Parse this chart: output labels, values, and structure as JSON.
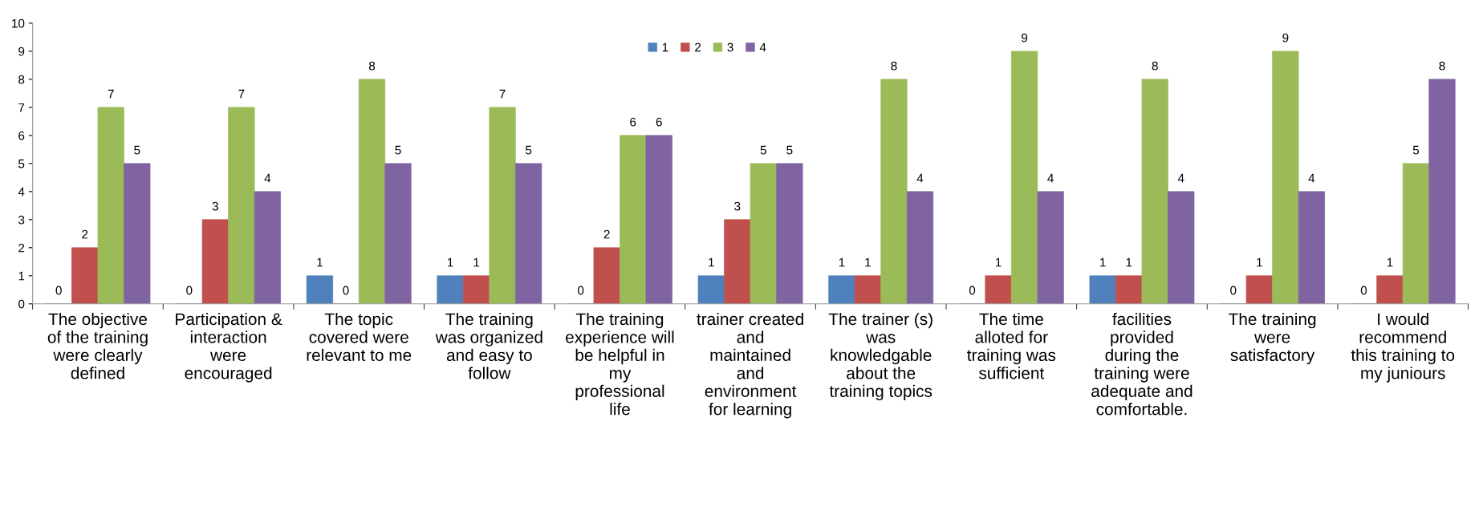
{
  "chart_data": {
    "type": "bar",
    "categories": [
      "The objective\nof the training\nwere clearly\ndefined",
      "Participation &\ninteraction\nwere\nencouraged",
      "The topic\ncovered were\nrelevant to me",
      "The training\nwas organized\nand easy to\nfollow",
      "The training\nexperience will\nbe helpful in\nmy\nprofessional\nlife",
      "trainer created\nand\nmaintained\nand\nenvironment\nfor learning",
      "The trainer (s)\nwas\nknowledgable\nabout the\ntraining topics",
      "The time\nalloted for\ntraining was\nsufficient",
      "facilities\nprovided\nduring the\ntraining were\nadequate and\ncomfortable.",
      "The training\nwere\nsatisfactory",
      "I would\nrecommend\nthis training to\nmy juniours"
    ],
    "series": [
      {
        "name": "1",
        "color": "#4f81bd",
        "values": [
          0,
          0,
          1,
          1,
          0,
          1,
          1,
          0,
          1,
          0,
          0
        ]
      },
      {
        "name": "2",
        "color": "#c0504d",
        "values": [
          2,
          3,
          0,
          1,
          2,
          3,
          1,
          1,
          1,
          1,
          1
        ]
      },
      {
        "name": "3",
        "color": "#9bbb59",
        "values": [
          7,
          7,
          8,
          7,
          6,
          5,
          8,
          9,
          8,
          9,
          5
        ]
      },
      {
        "name": "4",
        "color": "#8064a2",
        "values": [
          5,
          4,
          5,
          5,
          6,
          5,
          4,
          4,
          4,
          4,
          8
        ]
      }
    ],
    "ylim": [
      0,
      10
    ],
    "yticks": [
      0,
      1,
      2,
      3,
      4,
      5,
      6,
      7,
      8,
      9,
      10
    ],
    "data_labels": true,
    "legend": "top",
    "grid": false
  }
}
